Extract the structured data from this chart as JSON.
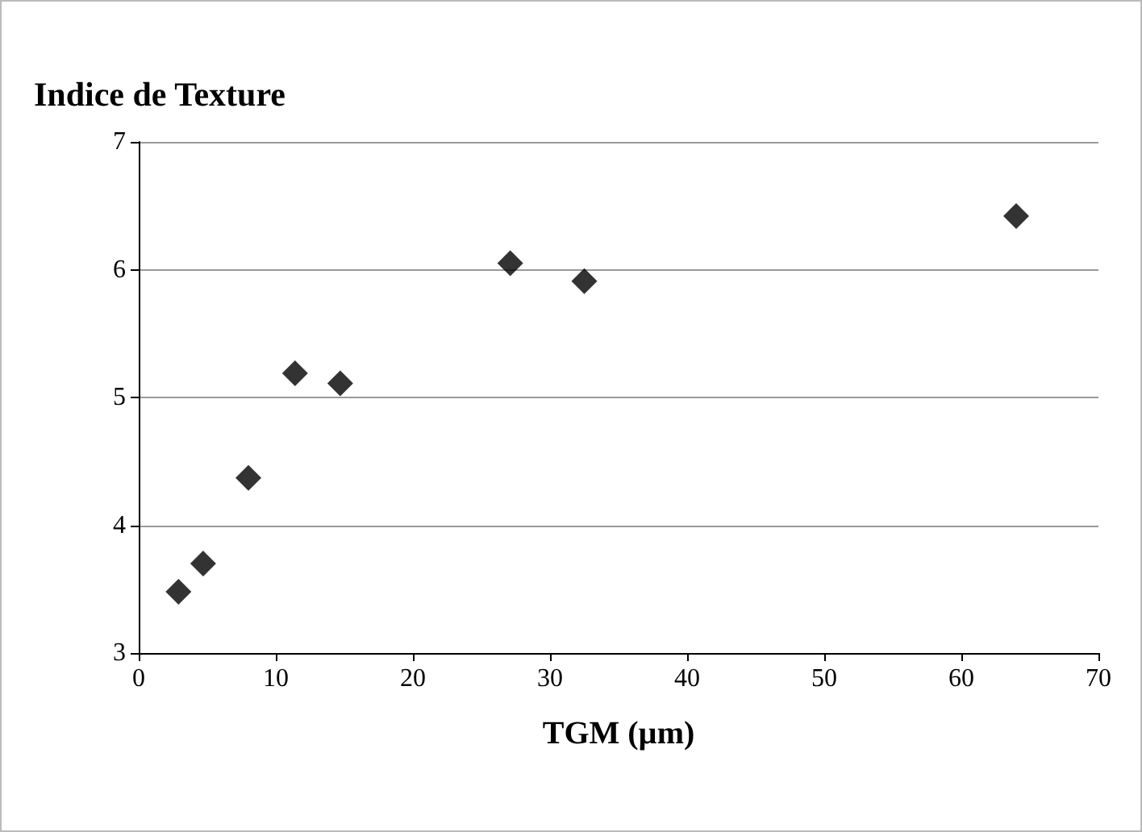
{
  "chart_data": {
    "type": "scatter",
    "title": "Indice de Texture",
    "xlabel": "TGM (µm)",
    "x": [
      2.9,
      4.7,
      8.0,
      11.4,
      14.7,
      27.1,
      32.5,
      64.0
    ],
    "values": [
      3.48,
      3.7,
      4.37,
      5.19,
      5.11,
      6.05,
      5.91,
      6.42
    ],
    "color": "#000000",
    "marker": "diamond",
    "grid": "y",
    "xlim": [
      0,
      70
    ],
    "xticks": [
      0,
      10,
      20,
      30,
      40,
      50,
      60,
      70
    ],
    "ylim": [
      3,
      7
    ],
    "yticks": [
      3,
      4,
      5,
      6,
      7
    ]
  }
}
